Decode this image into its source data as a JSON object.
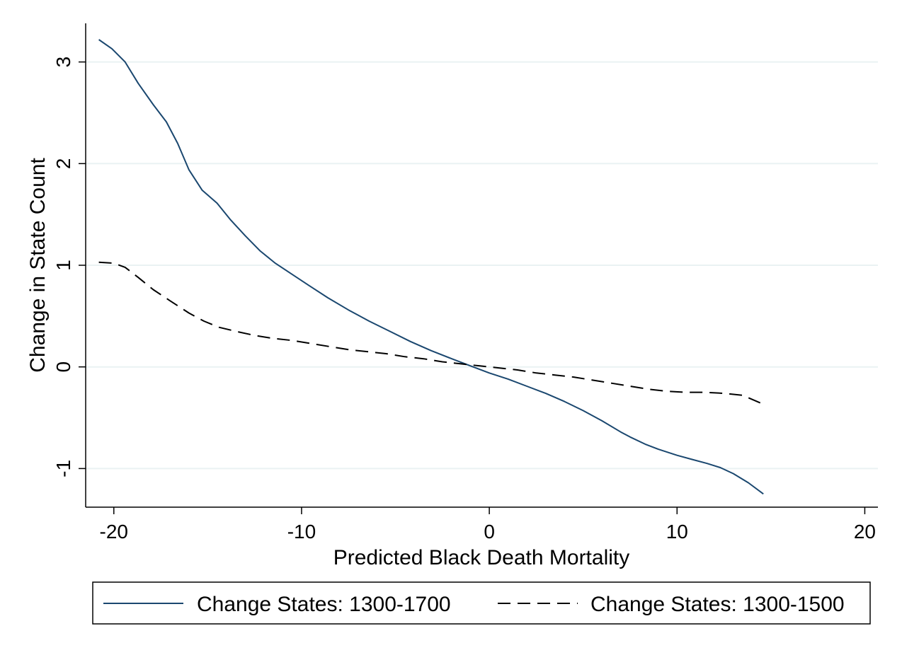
{
  "chart_data": {
    "type": "line",
    "title": "",
    "xlabel": "Predicted Black Death Mortality",
    "ylabel": "Change in State Count",
    "xlim": [
      -21.5,
      20.7
    ],
    "ylim": [
      -1.38,
      3.38
    ],
    "x_ticks": [
      -20,
      -10,
      0,
      10,
      20
    ],
    "x_tick_labels": [
      "-20",
      "-10",
      "0",
      "10",
      "20"
    ],
    "y_ticks": [
      -1,
      0,
      1,
      2,
      3
    ],
    "y_tick_labels": [
      "-1",
      "0",
      "1",
      "2",
      "3"
    ],
    "grid": "horizontal",
    "legend_position": "bottom",
    "series": [
      {
        "name": "Change States: 1300-1700",
        "color": "#1a476f",
        "style": "solid",
        "x": [
          -20.8,
          -20.1,
          -19.4,
          -18.7,
          -17.9,
          -17.2,
          -16.6,
          -16.0,
          -15.3,
          -14.5,
          -13.8,
          -13.0,
          -12.2,
          -11.4,
          -10.5,
          -9.6,
          -8.6,
          -7.5,
          -6.4,
          -5.3,
          -4.2,
          -3.1,
          -2.0,
          -1.0,
          0.0,
          1.0,
          2.0,
          3.0,
          4.0,
          5.0,
          6.0,
          7.0,
          7.5,
          8.3,
          9.0,
          10.0,
          10.8,
          11.6,
          12.3,
          13.0,
          13.8,
          14.6
        ],
        "y": [
          3.22,
          3.13,
          3.0,
          2.79,
          2.58,
          2.41,
          2.2,
          1.94,
          1.74,
          1.61,
          1.45,
          1.29,
          1.14,
          1.02,
          0.91,
          0.8,
          0.68,
          0.56,
          0.45,
          0.35,
          0.25,
          0.16,
          0.08,
          0.01,
          -0.06,
          -0.12,
          -0.19,
          -0.26,
          -0.34,
          -0.43,
          -0.53,
          -0.64,
          -0.69,
          -0.76,
          -0.81,
          -0.87,
          -0.91,
          -0.95,
          -0.99,
          -1.05,
          -1.14,
          -1.25
        ]
      },
      {
        "name": "Change States: 1300-1500",
        "color": "#000000",
        "style": "dashed",
        "x": [
          -20.8,
          -20.0,
          -19.4,
          -18.7,
          -17.9,
          -17.0,
          -16.0,
          -15.2,
          -14.4,
          -13.5,
          -12.5,
          -11.5,
          -10.5,
          -9.5,
          -8.5,
          -7.5,
          -6.5,
          -5.5,
          -4.5,
          -3.5,
          -2.5,
          -1.5,
          -0.5,
          0.5,
          1.5,
          2.5,
          3.5,
          4.5,
          5.5,
          6.5,
          7.5,
          8.5,
          9.5,
          10.5,
          11.5,
          12.5,
          13.5,
          14.5
        ],
        "y": [
          1.03,
          1.02,
          0.98,
          0.88,
          0.76,
          0.65,
          0.53,
          0.45,
          0.39,
          0.35,
          0.31,
          0.28,
          0.26,
          0.23,
          0.2,
          0.17,
          0.15,
          0.13,
          0.1,
          0.08,
          0.05,
          0.03,
          0.01,
          -0.01,
          -0.03,
          -0.06,
          -0.08,
          -0.1,
          -0.13,
          -0.16,
          -0.19,
          -0.22,
          -0.24,
          -0.25,
          -0.25,
          -0.26,
          -0.28,
          -0.36
        ]
      }
    ]
  }
}
